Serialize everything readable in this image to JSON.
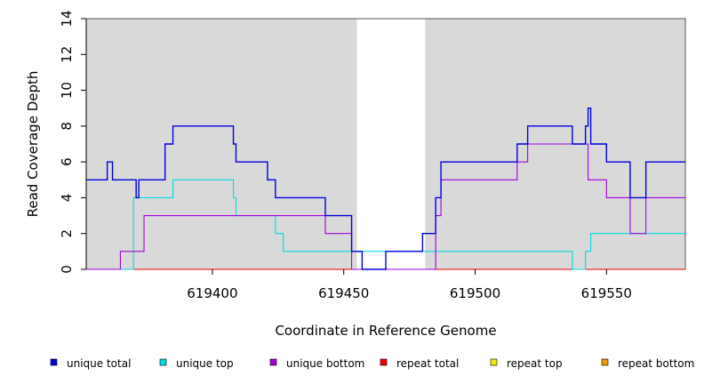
{
  "chart_data": {
    "type": "line",
    "title": "",
    "xlabel": "Coordinate in Reference Genome",
    "ylabel": "Read Coverage Depth",
    "xlim": [
      619352,
      619580
    ],
    "ylim": [
      0,
      14
    ],
    "x_ticks": [
      619400,
      619450,
      619500,
      619550
    ],
    "y_ticks": [
      0,
      2,
      4,
      6,
      8,
      10,
      12,
      14
    ],
    "grid": false,
    "legend_position": "bottom",
    "shaded_regions": [
      {
        "x_start": 619352,
        "x_end": 619455
      },
      {
        "x_start": 619481,
        "x_end": 619580
      }
    ],
    "series": [
      {
        "name": "unique total",
        "color": "#0000dd",
        "step_points": [
          [
            619352,
            5
          ],
          [
            619360,
            6
          ],
          [
            619362,
            5
          ],
          [
            619371,
            4
          ],
          [
            619372,
            5
          ],
          [
            619382,
            7
          ],
          [
            619385,
            8
          ],
          [
            619408,
            7
          ],
          [
            619409,
            6
          ],
          [
            619421,
            5
          ],
          [
            619424,
            4
          ],
          [
            619443,
            3
          ],
          [
            619453,
            1
          ],
          [
            619457,
            0
          ],
          [
            619466,
            1
          ],
          [
            619480,
            2
          ],
          [
            619485,
            4
          ],
          [
            619487,
            6
          ],
          [
            619516,
            7
          ],
          [
            619520,
            8
          ],
          [
            619537,
            7
          ],
          [
            619542,
            8
          ],
          [
            619543,
            9
          ],
          [
            619544,
            7
          ],
          [
            619550,
            6
          ],
          [
            619559,
            4
          ],
          [
            619565,
            6
          ],
          [
            619580,
            6
          ]
        ]
      },
      {
        "name": "unique top",
        "color": "#00dddd",
        "step_points": [
          [
            619352,
            0
          ],
          [
            619370,
            4
          ],
          [
            619385,
            5
          ],
          [
            619408,
            4
          ],
          [
            619409,
            3
          ],
          [
            619424,
            2
          ],
          [
            619427,
            1
          ],
          [
            619480,
            1
          ],
          [
            619537,
            0
          ],
          [
            619542,
            1
          ],
          [
            619544,
            2
          ],
          [
            619580,
            2
          ]
        ]
      },
      {
        "name": "unique bottom",
        "color": "#a000dd",
        "step_points": [
          [
            619352,
            0
          ],
          [
            619365,
            1
          ],
          [
            619374,
            3
          ],
          [
            619443,
            2
          ],
          [
            619453,
            0
          ],
          [
            619485,
            3
          ],
          [
            619487,
            5
          ],
          [
            619516,
            6
          ],
          [
            619520,
            7
          ],
          [
            619543,
            5
          ],
          [
            619550,
            4
          ],
          [
            619559,
            2
          ],
          [
            619565,
            4
          ],
          [
            619580,
            4
          ]
        ]
      },
      {
        "name": "repeat total",
        "color": "#ee0000",
        "step_points": [
          [
            619352,
            0
          ],
          [
            619580,
            0
          ]
        ]
      },
      {
        "name": "repeat top",
        "color": "#eeee00",
        "step_points": [
          [
            619352,
            0
          ],
          [
            619580,
            0
          ]
        ]
      },
      {
        "name": "repeat bottom",
        "color": "#ee9900",
        "step_points": [
          [
            619352,
            0
          ],
          [
            619580,
            0
          ]
        ]
      }
    ]
  }
}
